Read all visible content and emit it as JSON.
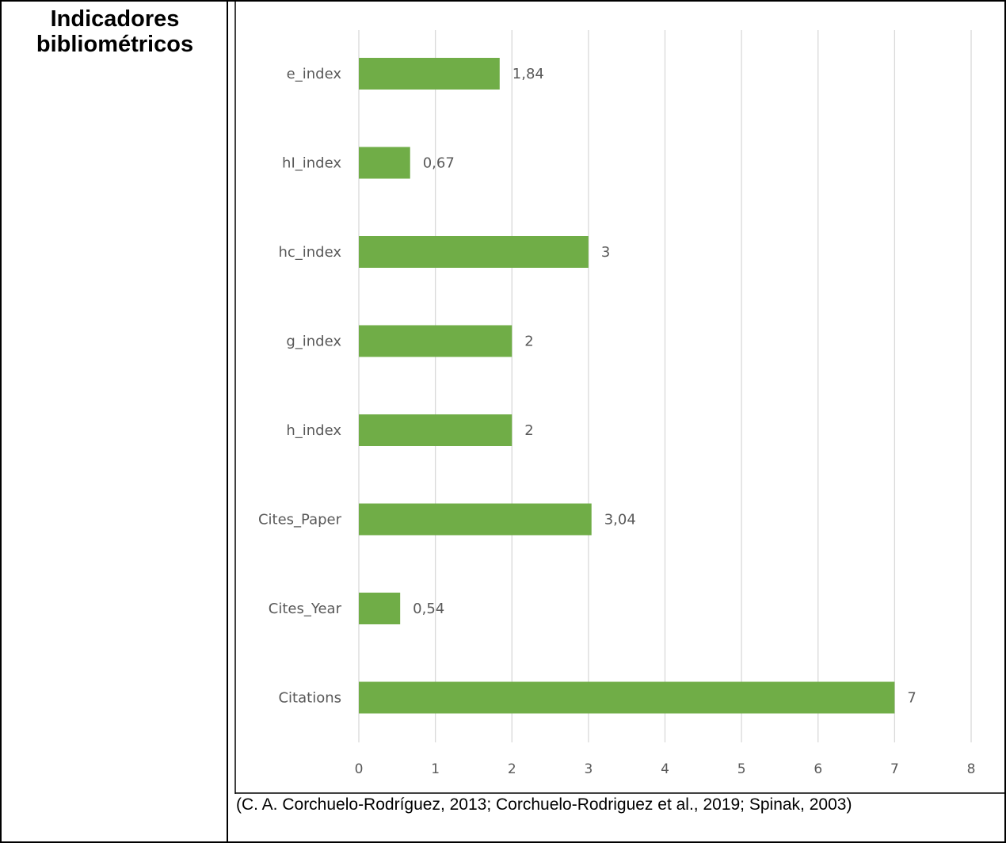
{
  "header": {
    "title": "Indicadores bibliométricos"
  },
  "footer": {
    "source": "(C. A. Corchuelo-Rodríguez, 2013; Corchuelo-Rodriguez et al., 2019; Spinak, 2003)"
  },
  "chart_data": {
    "type": "bar",
    "orientation": "horizontal",
    "categories": [
      "e_index",
      "hI_index",
      "hc_index",
      "g_index",
      "h_index",
      "Cites_Paper",
      "Cites_Year",
      "Citations"
    ],
    "values": [
      1.84,
      0.67,
      3,
      2,
      2,
      3.04,
      0.54,
      7
    ],
    "data_labels": [
      "1,84",
      "0,67",
      "3",
      "2",
      "2",
      "3,04",
      "0,54",
      "7"
    ],
    "x_ticks": [
      "0",
      "1",
      "2",
      "3",
      "4",
      "5",
      "6",
      "7",
      "8"
    ],
    "xlim": [
      0,
      8
    ],
    "grid": true,
    "bar_color": "#70AD47",
    "grid_color": "#D9D9D9",
    "label_color": "#595959"
  }
}
